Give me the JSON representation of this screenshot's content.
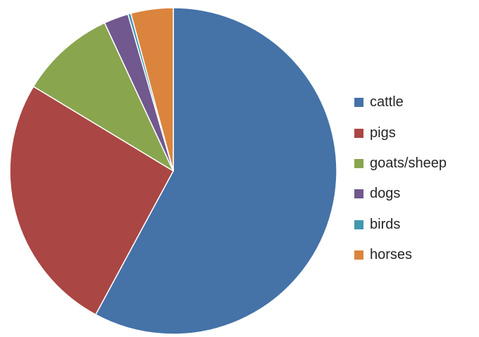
{
  "chart_data": {
    "type": "pie",
    "title": "",
    "slices": [
      {
        "label": "cattle",
        "value": 59.5,
        "color": "#4572A7"
      },
      {
        "label": "pigs",
        "value": 26.5,
        "color": "#AA4643"
      },
      {
        "label": "goats/sheep",
        "value": 9.7,
        "color": "#89A54E"
      },
      {
        "label": "dogs",
        "value": 2.5,
        "color": "#71588F"
      },
      {
        "label": "birds",
        "value": 0.3,
        "color": "#4198AF"
      },
      {
        "label": "horses",
        "value": 4.3,
        "color": "#DB843D"
      }
    ],
    "start": "top",
    "direction": "clockwise",
    "legend_position": "right"
  }
}
